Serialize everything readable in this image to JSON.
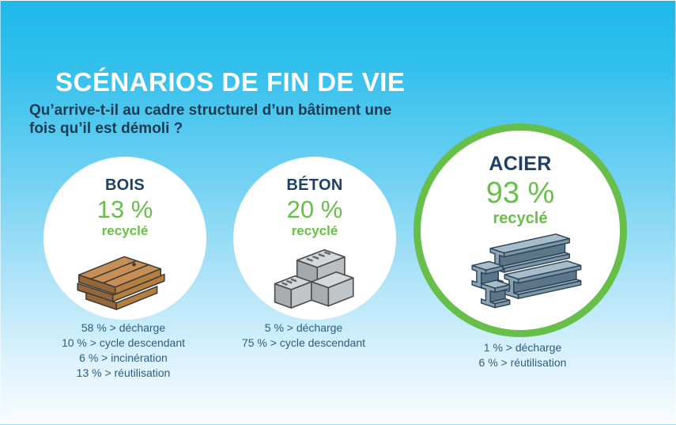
{
  "header": {
    "title": "SCÉNARIOS DE FIN DE VIE",
    "subtitle_line1": "Qu’arrive-t-il au cadre structurel d’un bâtiment une",
    "subtitle_line2": "fois qu’il est démoli ?"
  },
  "colors": {
    "background_top": "#1eb8e9",
    "background_bottom": "#f9fdff",
    "title_text": "#ffffff",
    "subtitle_text": "#1e3b52",
    "material_name_text": "#1d4064",
    "green_accent": "#68bf49",
    "highlight_ring": "#67bf4a",
    "stats_text": "#2d5d80",
    "circle_fill": "#ffffff"
  },
  "materials": [
    {
      "id": "bois",
      "name": "BOIS",
      "percent": "13 %",
      "recycled_label": "recyclé",
      "icon": "wood-planks-icon",
      "highlighted": false,
      "stats": [
        "58 % > décharge",
        "10 % > cycle descendant",
        "6 % > incinération",
        "13 % > réutilisation"
      ]
    },
    {
      "id": "beton",
      "name": "BÉTON",
      "percent": "20 %",
      "recycled_label": "recyclé",
      "icon": "concrete-blocks-icon",
      "highlighted": false,
      "stats": [
        "5 % > décharge",
        "75 % > cycle descendant"
      ]
    },
    {
      "id": "acier",
      "name": "ACIER",
      "percent": "93 %",
      "recycled_label": "recyclé",
      "icon": "steel-beams-icon",
      "highlighted": true,
      "stats": [
        "1 % > décharge",
        "6 % > réutilisation"
      ]
    }
  ]
}
